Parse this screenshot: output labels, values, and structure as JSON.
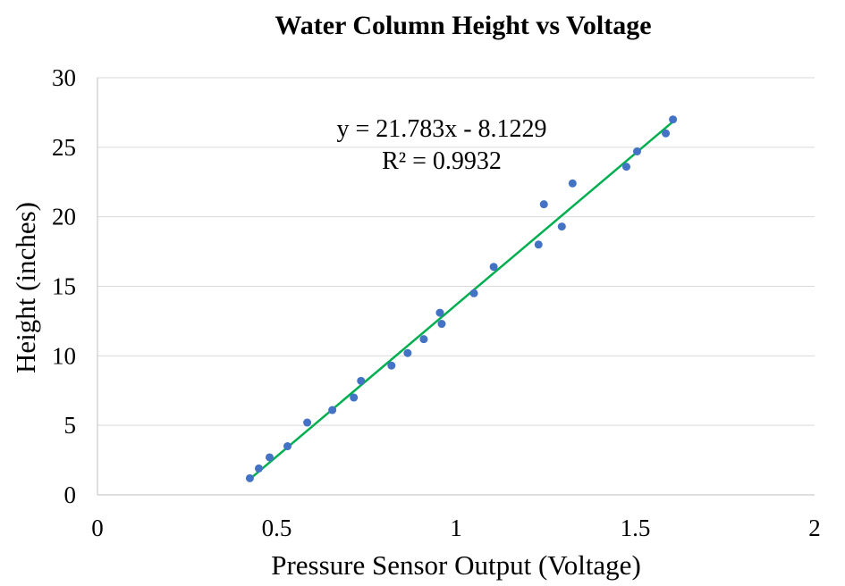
{
  "chart_data": {
    "type": "scatter",
    "title": "Water Column Height vs Voltage",
    "xlabel": "Pressure Sensor Output (Voltage)",
    "ylabel": "Height (inches)",
    "xlim": [
      0,
      2
    ],
    "ylim": [
      0,
      30
    ],
    "x_ticks": [
      0,
      0.5,
      1,
      1.5,
      2
    ],
    "x_tick_labels": [
      "0",
      "0.5",
      "1",
      "1.5",
      "2"
    ],
    "y_ticks": [
      0,
      5,
      10,
      15,
      20,
      25,
      30
    ],
    "y_tick_labels": [
      "0",
      "5",
      "10",
      "15",
      "20",
      "25",
      "30"
    ],
    "grid": "horizontal",
    "legend": "none",
    "point_color": "#4472c4",
    "trendline_color": "#00b050",
    "series": [
      {
        "x": [
          0.425,
          0.45,
          0.48,
          0.53,
          0.585,
          0.655,
          0.715,
          0.735,
          0.82,
          0.865,
          0.91,
          0.955,
          0.96,
          1.05,
          1.105,
          1.23,
          1.245,
          1.295,
          1.325,
          1.475,
          1.505,
          1.585,
          1.605
        ],
        "y": [
          1.2,
          1.9,
          2.7,
          3.5,
          5.2,
          6.1,
          7.0,
          8.2,
          9.3,
          10.2,
          11.2,
          13.1,
          12.3,
          14.5,
          16.4,
          18.0,
          20.9,
          19.3,
          22.4,
          23.6,
          24.7,
          26.0,
          27.0
        ]
      }
    ],
    "trendline": {
      "type": "linear",
      "slope": 21.783,
      "intercept": -8.1229,
      "x_range": [
        0.425,
        1.605
      ],
      "equation_label": "y = 21.783x - 8.1229",
      "r2_label": "R² = 0.9932"
    }
  }
}
